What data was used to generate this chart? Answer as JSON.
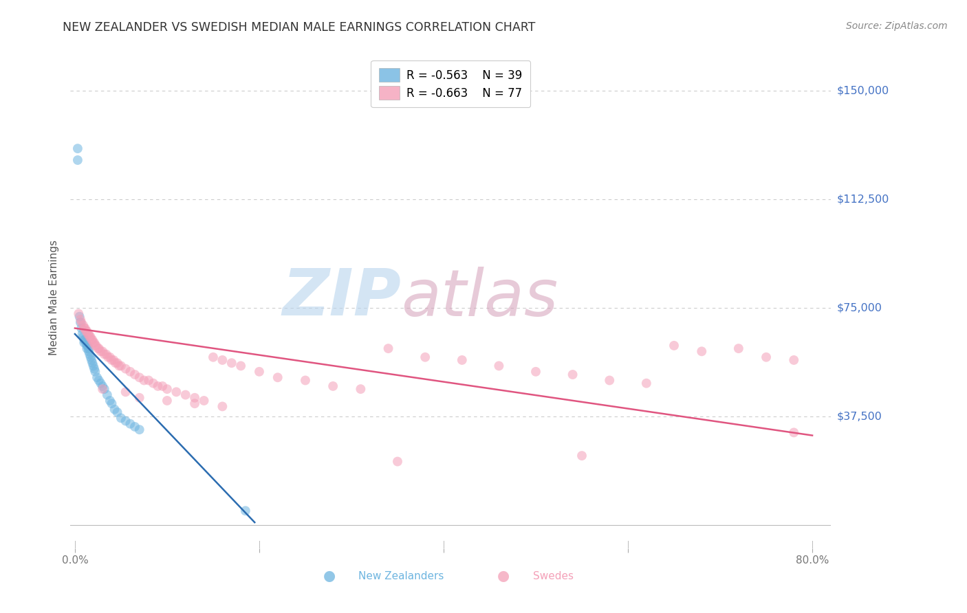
{
  "title": "NEW ZEALANDER VS SWEDISH MEDIAN MALE EARNINGS CORRELATION CHART",
  "source": "Source: ZipAtlas.com",
  "ylabel": "Median Male Earnings",
  "yticks": [
    0,
    37500,
    75000,
    112500,
    150000
  ],
  "ytick_labels": [
    "",
    "$37,500",
    "$75,000",
    "$112,500",
    "$150,000"
  ],
  "xlim": [
    -0.005,
    0.82
  ],
  "ylim": [
    -8000,
    165000
  ],
  "nz_color": "#6eb5e0",
  "sw_color": "#f4a0b8",
  "nz_line_color": "#2b6cb0",
  "sw_line_color": "#e05580",
  "legend_R_nz": "R = -0.563",
  "legend_N_nz": "N = 39",
  "legend_R_sw": "R = -0.663",
  "legend_N_sw": "N = 77",
  "legend_label_nz": "New Zealanders",
  "legend_label_sw": "Swedes",
  "background_color": "#ffffff",
  "grid_color": "#cccccc",
  "title_color": "#333333",
  "ytick_color": "#4472c4",
  "xtick_color": "#777777",
  "nz_scatter_x": [
    0.003,
    0.003,
    0.005,
    0.006,
    0.007,
    0.008,
    0.009,
    0.01,
    0.01,
    0.011,
    0.012,
    0.013,
    0.013,
    0.014,
    0.015,
    0.015,
    0.016,
    0.017,
    0.018,
    0.019,
    0.02,
    0.021,
    0.022,
    0.024,
    0.026,
    0.028,
    0.03,
    0.032,
    0.035,
    0.038,
    0.04,
    0.043,
    0.046,
    0.05,
    0.055,
    0.06,
    0.065,
    0.07,
    0.185
  ],
  "nz_scatter_y": [
    130000,
    126000,
    72000,
    70000,
    68000,
    66000,
    65000,
    64000,
    63000,
    64000,
    63000,
    62000,
    61000,
    62000,
    61000,
    60000,
    59000,
    58000,
    57000,
    56000,
    55000,
    54000,
    53000,
    51000,
    50000,
    49000,
    48000,
    47000,
    45000,
    43000,
    42000,
    40000,
    39000,
    37000,
    36000,
    35000,
    34000,
    33000,
    5000
  ],
  "sw_scatter_x": [
    0.004,
    0.006,
    0.007,
    0.009,
    0.01,
    0.011,
    0.012,
    0.013,
    0.014,
    0.015,
    0.016,
    0.017,
    0.018,
    0.019,
    0.02,
    0.021,
    0.022,
    0.023,
    0.025,
    0.026,
    0.028,
    0.03,
    0.032,
    0.034,
    0.036,
    0.038,
    0.04,
    0.042,
    0.044,
    0.046,
    0.048,
    0.05,
    0.055,
    0.06,
    0.065,
    0.07,
    0.075,
    0.08,
    0.085,
    0.09,
    0.095,
    0.1,
    0.11,
    0.12,
    0.13,
    0.14,
    0.15,
    0.16,
    0.17,
    0.18,
    0.2,
    0.22,
    0.25,
    0.28,
    0.31,
    0.34,
    0.38,
    0.42,
    0.46,
    0.5,
    0.54,
    0.58,
    0.62,
    0.65,
    0.68,
    0.72,
    0.75,
    0.78,
    0.03,
    0.055,
    0.07,
    0.1,
    0.13,
    0.16,
    0.35,
    0.55,
    0.78
  ],
  "sw_scatter_y": [
    73000,
    71000,
    70000,
    69000,
    68000,
    68000,
    67000,
    67000,
    66000,
    66000,
    65000,
    65000,
    64000,
    64000,
    63000,
    63000,
    62000,
    62000,
    61000,
    61000,
    60000,
    60000,
    59000,
    59000,
    58000,
    58000,
    57000,
    57000,
    56000,
    56000,
    55000,
    55000,
    54000,
    53000,
    52000,
    51000,
    50000,
    50000,
    49000,
    48000,
    48000,
    47000,
    46000,
    45000,
    44000,
    43000,
    58000,
    57000,
    56000,
    55000,
    53000,
    51000,
    50000,
    48000,
    47000,
    61000,
    58000,
    57000,
    55000,
    53000,
    52000,
    50000,
    49000,
    62000,
    60000,
    61000,
    58000,
    57000,
    47000,
    46000,
    44000,
    43000,
    42000,
    41000,
    22000,
    24000,
    32000
  ],
  "nz_line_x0": 0.0,
  "nz_line_y0": 66000,
  "nz_line_x1": 0.195,
  "nz_line_y1": 1000,
  "sw_line_x0": 0.0,
  "sw_line_y0": 68000,
  "sw_line_x1": 0.8,
  "sw_line_y1": 31000,
  "marker_size": 100,
  "marker_alpha": 0.55,
  "line_width": 1.8,
  "watermark_zip": "ZIP",
  "watermark_atlas": "atlas",
  "watermark_color": "#b8d4ed",
  "watermark_color2": "#d4a0b8"
}
